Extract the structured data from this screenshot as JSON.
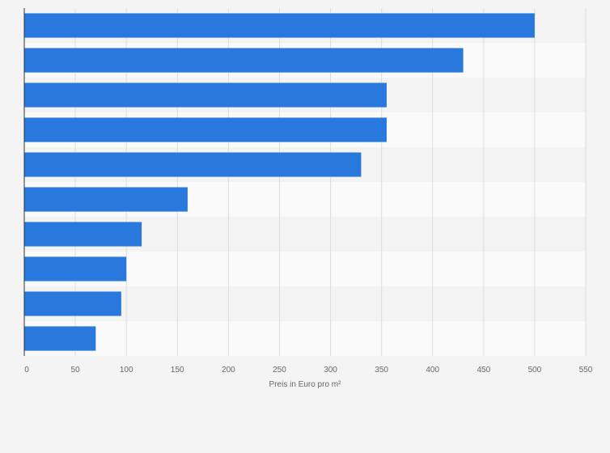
{
  "chart_data": {
    "type": "bar",
    "orientation": "horizontal",
    "categories": [
      "",
      "",
      "",
      "",
      "",
      "",
      "",
      "",
      "",
      ""
    ],
    "values": [
      500,
      430,
      355,
      355,
      330,
      160,
      115,
      100,
      95,
      70
    ],
    "xlabel": "Preis in Euro pro m²",
    "ylabel": "",
    "xlim": [
      0,
      550
    ],
    "xticks": [
      "0",
      "50",
      "100",
      "150",
      "200",
      "250",
      "300",
      "350",
      "400",
      "450",
      "500",
      "550"
    ],
    "grid": true,
    "legend": "none",
    "colors": {
      "bar": "#2878de",
      "background": "#f4f4f4",
      "row_band_light": "#fafafa",
      "row_band_dark": "#f3f3f3",
      "grid": "#dddddd",
      "axis": "#333333"
    }
  }
}
